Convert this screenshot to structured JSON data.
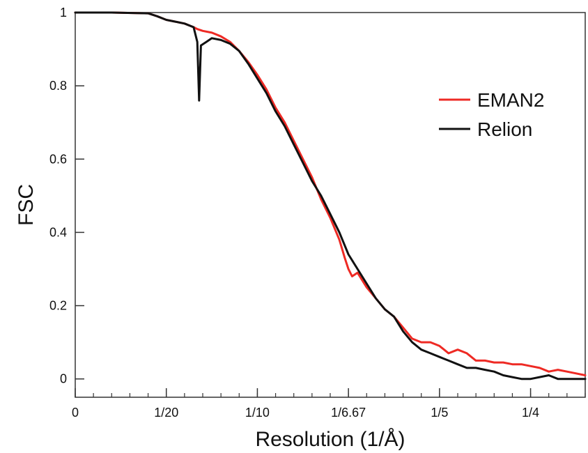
{
  "chart_data": {
    "type": "line",
    "xlabel": "Resolution (1/Å)",
    "ylabel": "FSC",
    "xlim": [
      0,
      0.28
    ],
    "ylim": [
      -0.05,
      1.0
    ],
    "x_ticks": [
      {
        "value": 0,
        "label": "0"
      },
      {
        "value": 0.05,
        "label": "1/20"
      },
      {
        "value": 0.1,
        "label": "1/10"
      },
      {
        "value": 0.15,
        "label": "1/6.67"
      },
      {
        "value": 0.2,
        "label": "1/5"
      },
      {
        "value": 0.25,
        "label": "1/4"
      }
    ],
    "x_minor_step": 0.01,
    "y_ticks": [
      {
        "value": 0,
        "label": "0"
      },
      {
        "value": 0.2,
        "label": "0.2"
      },
      {
        "value": 0.4,
        "label": "0.4"
      },
      {
        "value": 0.6,
        "label": "0.6"
      },
      {
        "value": 0.8,
        "label": "0.8"
      },
      {
        "value": 1,
        "label": "1"
      }
    ],
    "grid": false,
    "legend_position": "top-right",
    "series": [
      {
        "name": "EMAN2",
        "color": "#ee2a24",
        "points": [
          [
            0,
            1.0
          ],
          [
            0.02,
            1.0
          ],
          [
            0.04,
            0.998
          ],
          [
            0.045,
            0.99
          ],
          [
            0.05,
            0.98
          ],
          [
            0.055,
            0.975
          ],
          [
            0.06,
            0.97
          ],
          [
            0.065,
            0.96
          ],
          [
            0.067,
            0.955
          ],
          [
            0.07,
            0.95
          ],
          [
            0.075,
            0.945
          ],
          [
            0.08,
            0.935
          ],
          [
            0.085,
            0.92
          ],
          [
            0.09,
            0.895
          ],
          [
            0.095,
            0.865
          ],
          [
            0.1,
            0.83
          ],
          [
            0.105,
            0.79
          ],
          [
            0.11,
            0.74
          ],
          [
            0.115,
            0.7
          ],
          [
            0.12,
            0.65
          ],
          [
            0.125,
            0.6
          ],
          [
            0.13,
            0.55
          ],
          [
            0.135,
            0.49
          ],
          [
            0.14,
            0.44
          ],
          [
            0.145,
            0.38
          ],
          [
            0.148,
            0.33
          ],
          [
            0.15,
            0.3
          ],
          [
            0.152,
            0.28
          ],
          [
            0.155,
            0.29
          ],
          [
            0.16,
            0.25
          ],
          [
            0.165,
            0.22
          ],
          [
            0.17,
            0.19
          ],
          [
            0.175,
            0.17
          ],
          [
            0.18,
            0.14
          ],
          [
            0.185,
            0.11
          ],
          [
            0.19,
            0.1
          ],
          [
            0.195,
            0.1
          ],
          [
            0.2,
            0.09
          ],
          [
            0.205,
            0.07
          ],
          [
            0.21,
            0.08
          ],
          [
            0.215,
            0.07
          ],
          [
            0.22,
            0.05
          ],
          [
            0.225,
            0.05
          ],
          [
            0.23,
            0.045
          ],
          [
            0.235,
            0.045
          ],
          [
            0.24,
            0.04
          ],
          [
            0.245,
            0.04
          ],
          [
            0.25,
            0.035
          ],
          [
            0.255,
            0.03
          ],
          [
            0.26,
            0.02
          ],
          [
            0.265,
            0.025
          ],
          [
            0.27,
            0.02
          ],
          [
            0.275,
            0.015
          ],
          [
            0.28,
            0.01
          ]
        ]
      },
      {
        "name": "Relion",
        "color": "#111111",
        "points": [
          [
            0,
            1.0
          ],
          [
            0.02,
            1.0
          ],
          [
            0.04,
            0.998
          ],
          [
            0.045,
            0.99
          ],
          [
            0.05,
            0.98
          ],
          [
            0.055,
            0.975
          ],
          [
            0.06,
            0.97
          ],
          [
            0.065,
            0.96
          ],
          [
            0.067,
            0.92
          ],
          [
            0.068,
            0.76
          ],
          [
            0.069,
            0.91
          ],
          [
            0.072,
            0.92
          ],
          [
            0.075,
            0.93
          ],
          [
            0.08,
            0.925
          ],
          [
            0.085,
            0.915
          ],
          [
            0.09,
            0.895
          ],
          [
            0.095,
            0.86
          ],
          [
            0.1,
            0.82
          ],
          [
            0.105,
            0.78
          ],
          [
            0.11,
            0.73
          ],
          [
            0.115,
            0.69
          ],
          [
            0.12,
            0.64
          ],
          [
            0.125,
            0.59
          ],
          [
            0.13,
            0.54
          ],
          [
            0.135,
            0.5
          ],
          [
            0.14,
            0.45
          ],
          [
            0.145,
            0.4
          ],
          [
            0.15,
            0.34
          ],
          [
            0.155,
            0.3
          ],
          [
            0.16,
            0.26
          ],
          [
            0.165,
            0.22
          ],
          [
            0.17,
            0.19
          ],
          [
            0.175,
            0.17
          ],
          [
            0.18,
            0.13
          ],
          [
            0.185,
            0.1
          ],
          [
            0.19,
            0.08
          ],
          [
            0.195,
            0.07
          ],
          [
            0.2,
            0.06
          ],
          [
            0.205,
            0.05
          ],
          [
            0.21,
            0.04
          ],
          [
            0.215,
            0.03
          ],
          [
            0.22,
            0.03
          ],
          [
            0.225,
            0.025
          ],
          [
            0.23,
            0.02
          ],
          [
            0.235,
            0.01
          ],
          [
            0.24,
            0.005
          ],
          [
            0.245,
            0.0
          ],
          [
            0.25,
            0.0
          ],
          [
            0.255,
            0.005
          ],
          [
            0.26,
            0.01
          ],
          [
            0.265,
            0.0
          ],
          [
            0.27,
            0.0
          ],
          [
            0.28,
            0.0
          ]
        ]
      }
    ]
  }
}
